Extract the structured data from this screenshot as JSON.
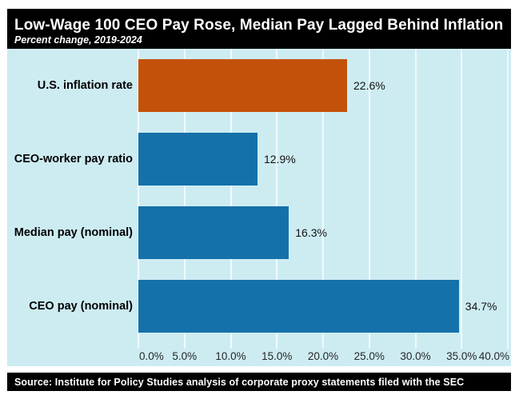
{
  "header": {
    "title": "Low-Wage 100 CEO Pay Rose, Median Pay Lagged Behind Inflation",
    "subtitle": "Percent change, 2019-2024"
  },
  "footer": {
    "source": "Source: Institute for Policy Studies analysis of corporate proxy statements filed with the SEC"
  },
  "colors": {
    "title_bar_bg": "#000000",
    "title_text": "#ffffff",
    "chart_bg": "#cdecf2",
    "gridline": "#f0fafb",
    "orange_bar": "#c45109",
    "blue_bar": "#1471aa",
    "label_text": "#000000"
  },
  "chart_data": {
    "type": "bar",
    "orientation": "horizontal",
    "title": "Low-Wage 100 CEO Pay Rose, Median Pay Lagged Behind Inflation",
    "subtitle": "Percent change, 2019-2024",
    "categories": [
      "U.S. inflation rate",
      "CEO-worker pay ratio",
      "Median pay (nominal)",
      "CEO pay (nominal)"
    ],
    "values": [
      22.6,
      12.9,
      16.3,
      34.7
    ],
    "value_labels": [
      "22.6%",
      "12.9%",
      "16.3%",
      "34.7%"
    ],
    "bar_colors": [
      "#c45109",
      "#1471aa",
      "#1471aa",
      "#1471aa"
    ],
    "xlim": [
      0,
      40
    ],
    "x_tick_values": [
      0,
      5,
      10,
      15,
      20,
      25,
      30,
      35,
      40
    ],
    "x_tick_labels": [
      "0.0%",
      "5.0%",
      "10.0%",
      "15.0%",
      "20.0%",
      "25.0%",
      "30.0%",
      "35.0%",
      "40.0%"
    ],
    "grid": true,
    "legend": false,
    "xlabel": "",
    "ylabel": ""
  }
}
